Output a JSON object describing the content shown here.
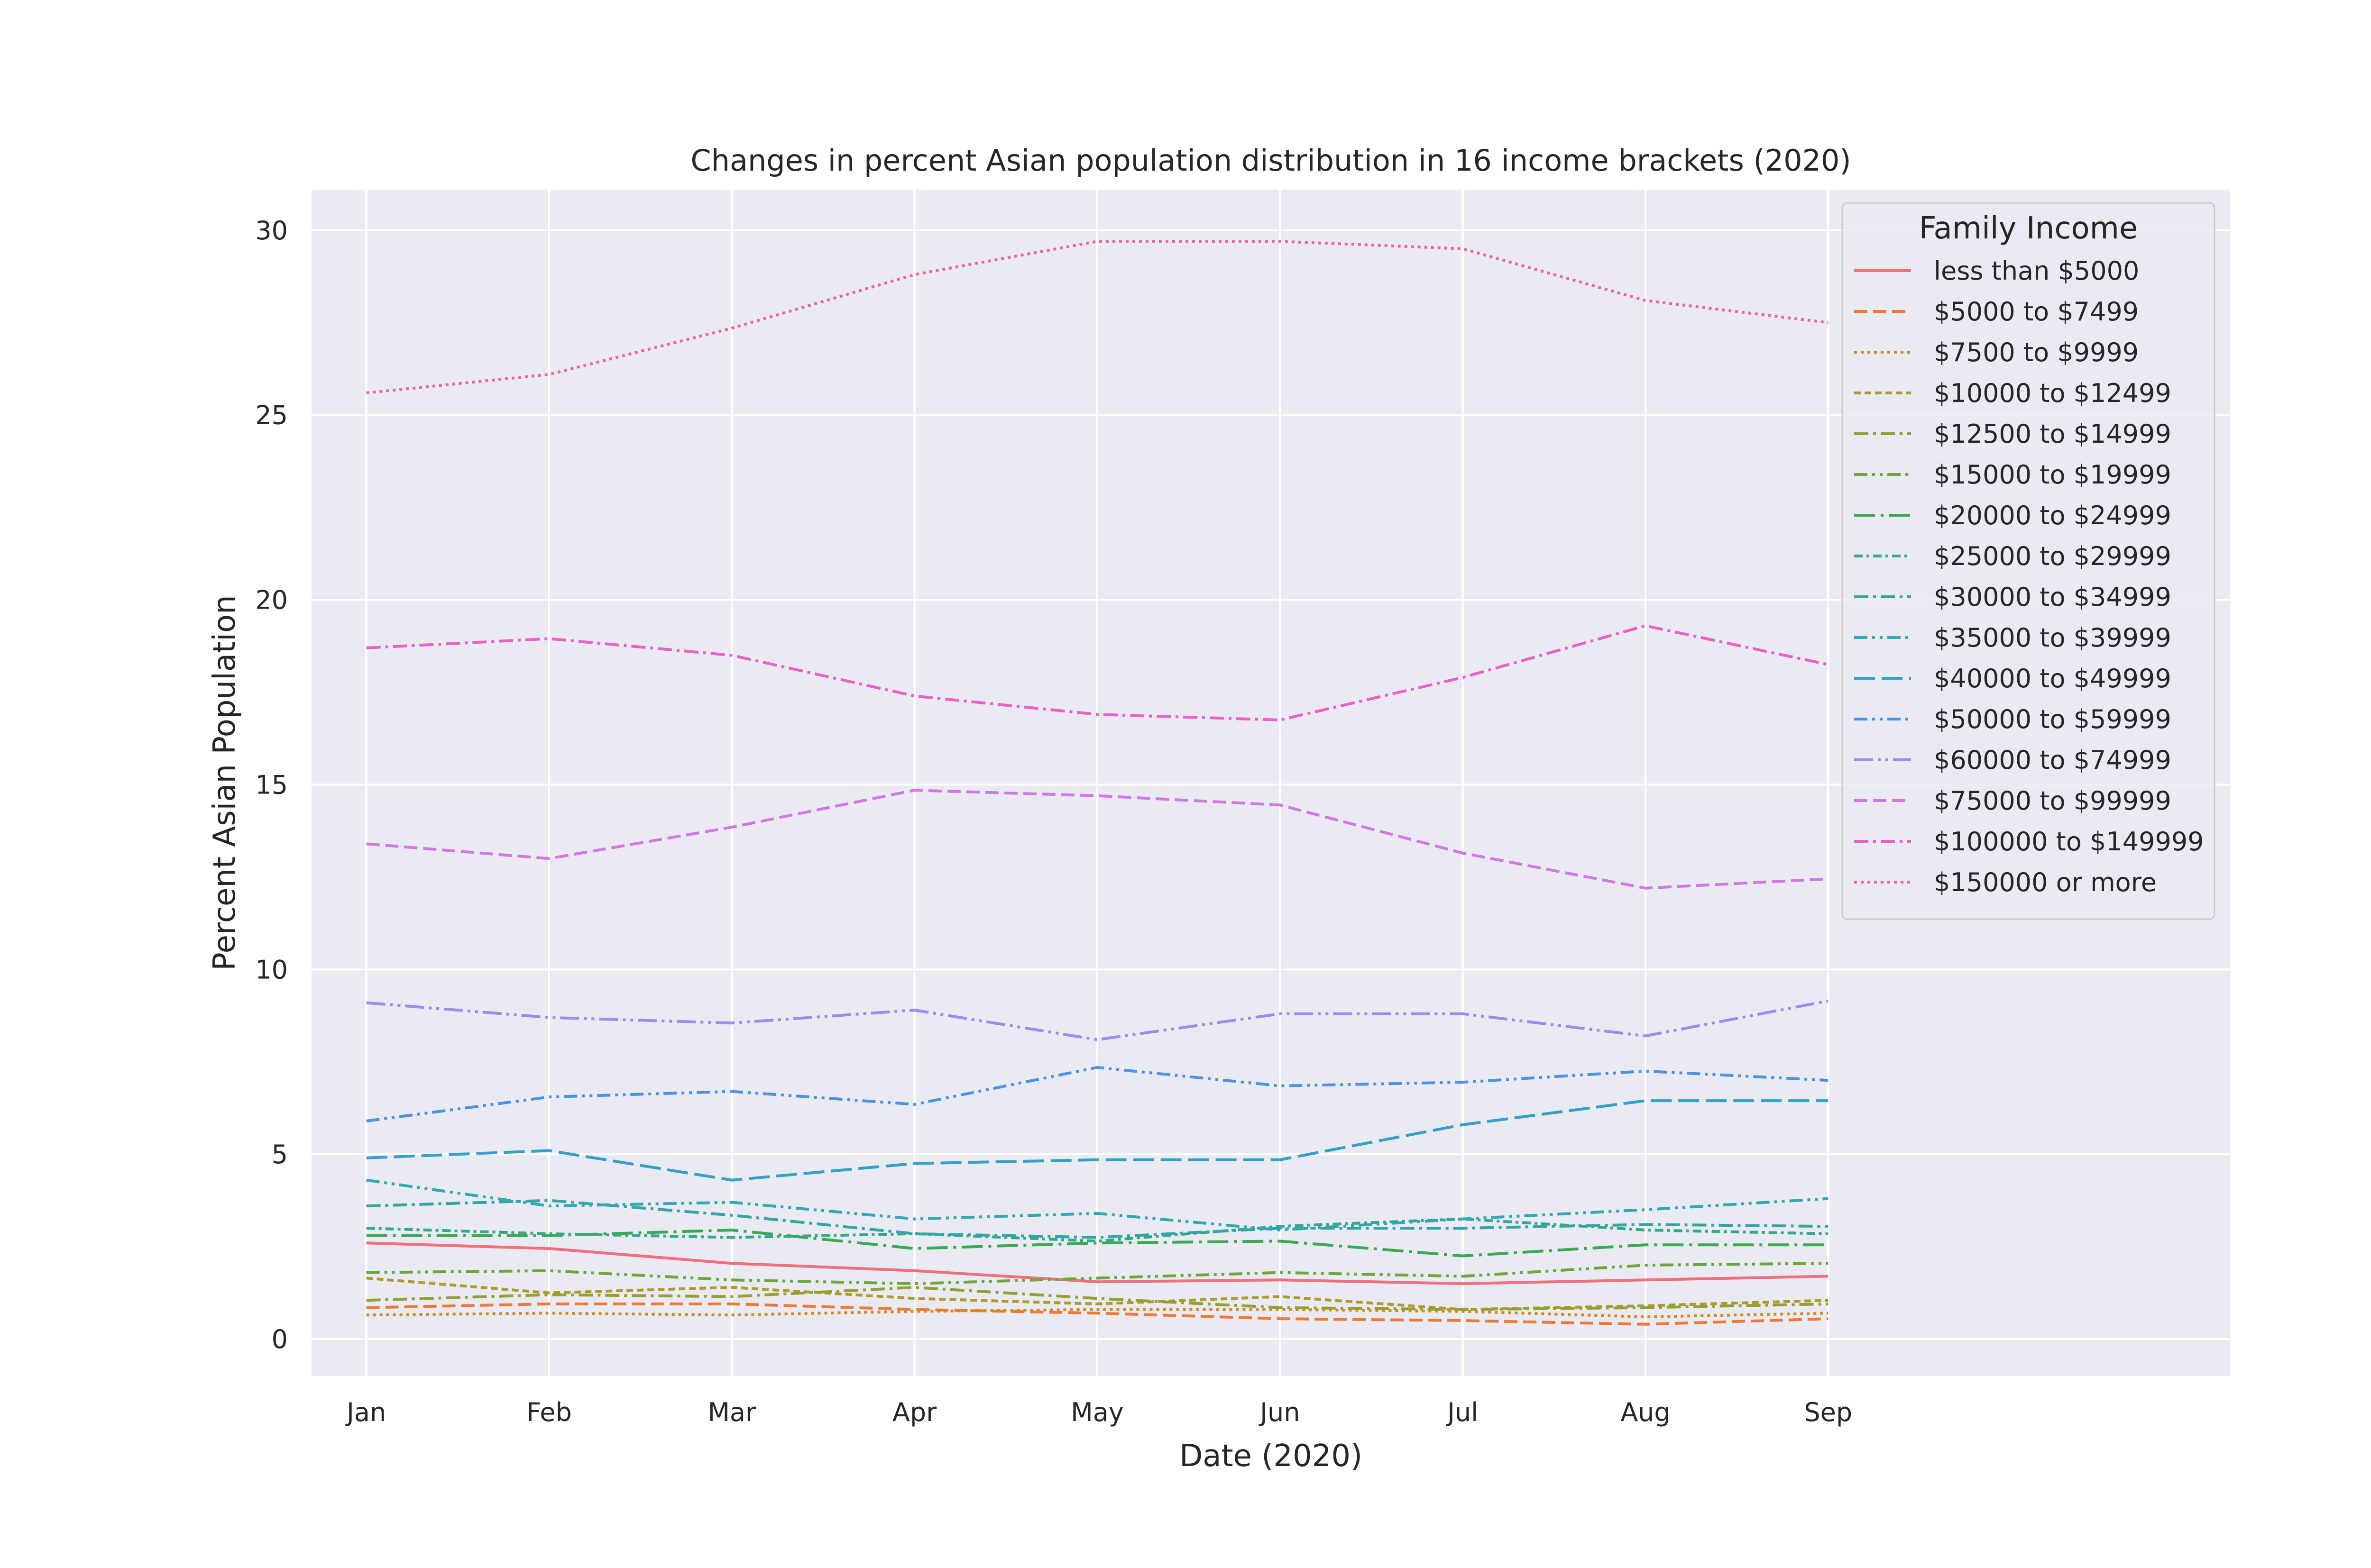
{
  "chart_data": {
    "type": "line",
    "title": "Changes in percent Asian population distribution in 16 income brackets (2020)",
    "xlabel": "Date (2020)",
    "ylabel": "Percent Asian Population",
    "categories": [
      "Jan",
      "Feb",
      "Mar",
      "Apr",
      "May",
      "Jun",
      "Jul",
      "Aug",
      "Sep"
    ],
    "yticks": [
      0,
      5,
      10,
      15,
      20,
      25,
      30
    ],
    "ylim": [
      -1.0,
      31.1
    ],
    "xlim": [
      -0.3,
      10.2
    ],
    "grid": true,
    "legend_title": "Family Income",
    "legend_position": "top-right",
    "series": [
      {
        "name": "less than $5000",
        "color": "#f0707c",
        "dash": "solid",
        "values": [
          2.6,
          2.45,
          2.05,
          1.85,
          1.55,
          1.6,
          1.5,
          1.6,
          1.7
        ]
      },
      {
        "name": "$5000 to $7499",
        "color": "#ee7a3a",
        "dash": "dashed",
        "values": [
          0.85,
          0.95,
          0.95,
          0.8,
          0.7,
          0.55,
          0.5,
          0.4,
          0.55
        ]
      },
      {
        "name": "$7500 to $9999",
        "color": "#d08b24",
        "dash": "dotted",
        "values": [
          0.65,
          0.7,
          0.65,
          0.75,
          0.8,
          0.8,
          0.75,
          0.6,
          0.7
        ]
      },
      {
        "name": "$10000 to $12499",
        "color": "#b09a2c",
        "dash": "dashed-fine",
        "values": [
          1.65,
          1.25,
          1.4,
          1.1,
          0.95,
          1.15,
          0.8,
          0.9,
          1.05
        ]
      },
      {
        "name": "$12500 to $14999",
        "color": "#93a132",
        "dash": "dashdot",
        "values": [
          1.05,
          1.2,
          1.15,
          1.4,
          1.1,
          0.85,
          0.8,
          0.85,
          0.95
        ]
      },
      {
        "name": "$15000 to $19999",
        "color": "#6aa83a",
        "dash": "dashdotdot",
        "values": [
          1.8,
          1.85,
          1.6,
          1.5,
          1.65,
          1.8,
          1.7,
          2.0,
          2.05
        ]
      },
      {
        "name": "$20000 to $24999",
        "color": "#3aa954",
        "dash": "dashdot-long",
        "values": [
          2.8,
          2.8,
          2.95,
          2.45,
          2.6,
          2.65,
          2.25,
          2.55,
          2.55
        ]
      },
      {
        "name": "$25000 to $29999",
        "color": "#34a98a",
        "dash": "dashdot-short",
        "values": [
          3.0,
          2.85,
          2.75,
          2.85,
          2.65,
          3.05,
          3.25,
          2.95,
          2.85
        ]
      },
      {
        "name": "$30000 to $34999",
        "color": "#32a6a4",
        "dash": "dashdot",
        "values": [
          3.6,
          3.75,
          3.35,
          2.85,
          2.75,
          3.0,
          3.0,
          3.1,
          3.05
        ]
      },
      {
        "name": "$35000 to $39999",
        "color": "#32a8b6",
        "dash": "dashdotdot",
        "values": [
          4.3,
          3.6,
          3.7,
          3.25,
          3.4,
          2.95,
          3.25,
          3.5,
          3.8
        ]
      },
      {
        "name": "$40000 to $49999",
        "color": "#35a0c8",
        "dash": "dashed-long",
        "values": [
          4.9,
          5.1,
          4.3,
          4.75,
          4.85,
          4.85,
          5.8,
          6.45,
          6.45
        ]
      },
      {
        "name": "$50000 to $59999",
        "color": "#4e93e0",
        "dash": "dashdotdot",
        "values": [
          5.9,
          6.55,
          6.7,
          6.35,
          7.35,
          6.85,
          6.95,
          7.25,
          7.0
        ]
      },
      {
        "name": "$60000 to $74999",
        "color": "#9a8ee8",
        "dash": "dashdotdot-long",
        "values": [
          9.1,
          8.7,
          8.55,
          8.9,
          8.1,
          8.8,
          8.8,
          8.2,
          9.15
        ]
      },
      {
        "name": "$75000 to $99999",
        "color": "#d278e6",
        "dash": "dashed",
        "values": [
          13.4,
          13.0,
          13.85,
          14.85,
          14.7,
          14.45,
          13.15,
          12.2,
          12.45
        ]
      },
      {
        "name": "$100000 to $149999",
        "color": "#ec60cc",
        "dash": "dashdot",
        "values": [
          18.7,
          18.95,
          18.5,
          17.4,
          16.9,
          16.75,
          17.9,
          19.3,
          18.25
        ]
      },
      {
        "name": "$150000 or more",
        "color": "#f066a0",
        "dash": "dotted",
        "values": [
          25.6,
          26.1,
          27.35,
          28.8,
          29.7,
          29.7,
          29.5,
          28.1,
          27.5
        ]
      }
    ]
  }
}
